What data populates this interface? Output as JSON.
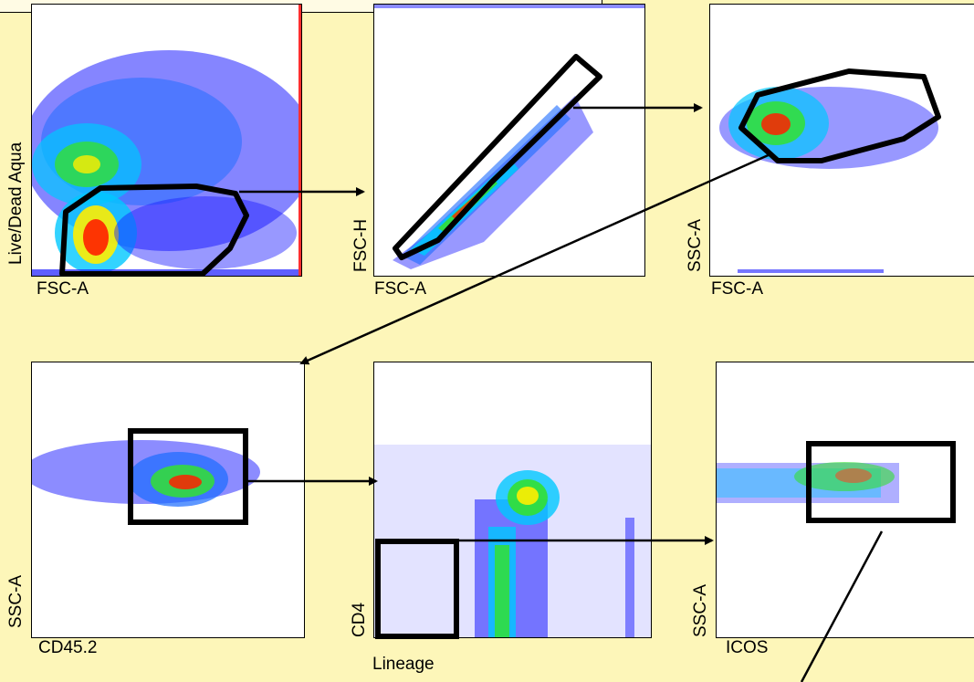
{
  "title": "",
  "colors": {
    "background": "#fdf6b9",
    "low_density": "#1a1aff",
    "mid_density": "#00c8ff",
    "green_density": "#33e033",
    "high_density": "#ffee00",
    "peak_density": "#ff2000",
    "gate_stroke": "#000000"
  },
  "panels": [
    {
      "id": "p1",
      "x_label": "FSC-A",
      "y_label": "Live/Dead Aqua"
    },
    {
      "id": "p2",
      "x_label": "FSC-A",
      "y_label": "FSC-H"
    },
    {
      "id": "p3",
      "x_label": "FSC-A",
      "y_label": "SSC-A"
    },
    {
      "id": "p4",
      "x_label": "CD45.2",
      "y_label": "SSC-A"
    },
    {
      "id": "p5",
      "x_label": "Lineage",
      "y_label": "CD4"
    },
    {
      "id": "p6",
      "x_label": "ICOS",
      "y_label": "SSC-A"
    }
  ],
  "gating_flow": [
    {
      "from": "p1",
      "to": "p2"
    },
    {
      "from": "p2",
      "to": "p3"
    },
    {
      "from": "p3",
      "to": "p4"
    },
    {
      "from": "p4",
      "to": "p5"
    },
    {
      "from": "p5",
      "to": "p6"
    },
    {
      "from": "p6",
      "to": ""
    }
  ]
}
